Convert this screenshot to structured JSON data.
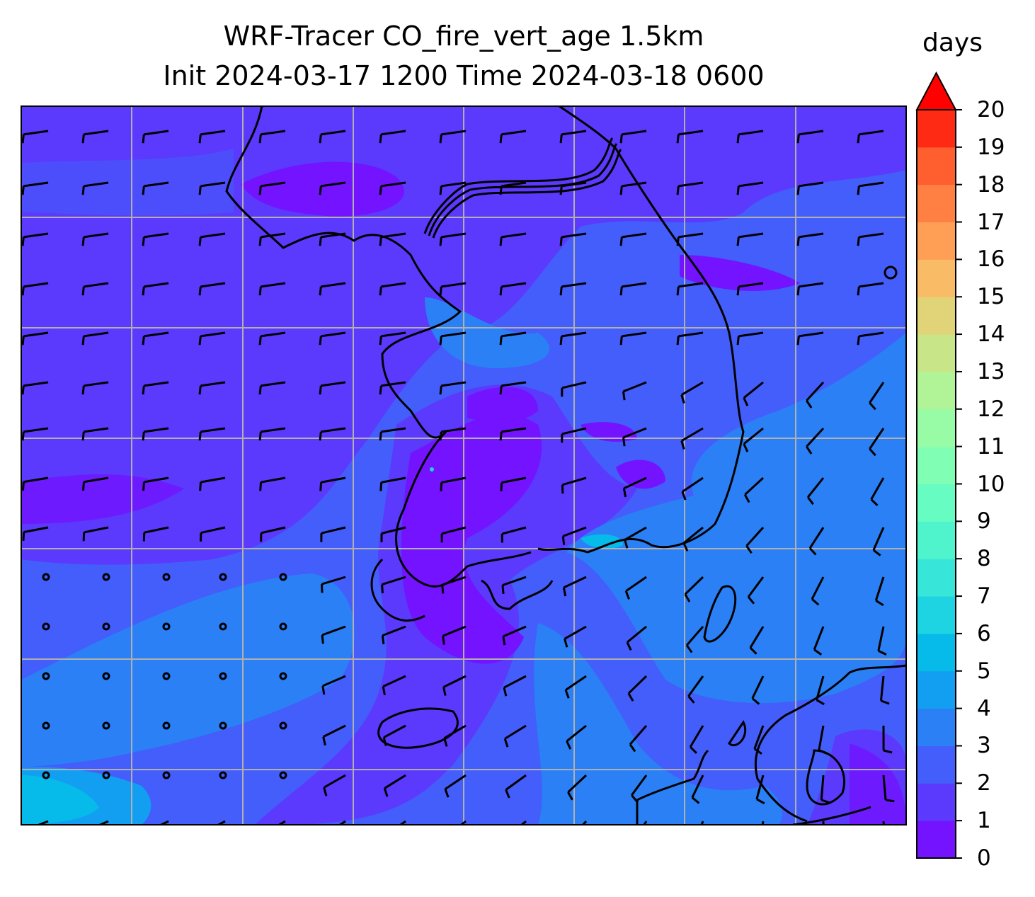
{
  "title": {
    "line1": "WRF-Tracer CO_fire_vert_age 1.5km",
    "line2": "Init 2024-03-17 1200 Time 2024-03-18 0600"
  },
  "colorbar": {
    "label": "days",
    "ticks": [
      "0",
      "1",
      "2",
      "3",
      "4",
      "5",
      "6",
      "7",
      "8",
      "9",
      "10",
      "11",
      "12",
      "13",
      "14",
      "15",
      "16",
      "17",
      "18",
      "19",
      "20"
    ],
    "colors": [
      "#7313ff",
      "#5b39fd",
      "#435efa",
      "#2b80f6",
      "#129ff1",
      "#06bbea",
      "#1ed3e2",
      "#37e6d8",
      "#4ff4cd",
      "#67fdc2",
      "#80ffb4",
      "#98fca6",
      "#b0f497",
      "#c8e688",
      "#e1d377",
      "#f9bb66",
      "#ff9f55",
      "#ff8042",
      "#ff5e2f",
      "#ff2a14"
    ],
    "extend_color": "#ff0000",
    "range": [
      0,
      20
    ],
    "extend": "max"
  }
}
